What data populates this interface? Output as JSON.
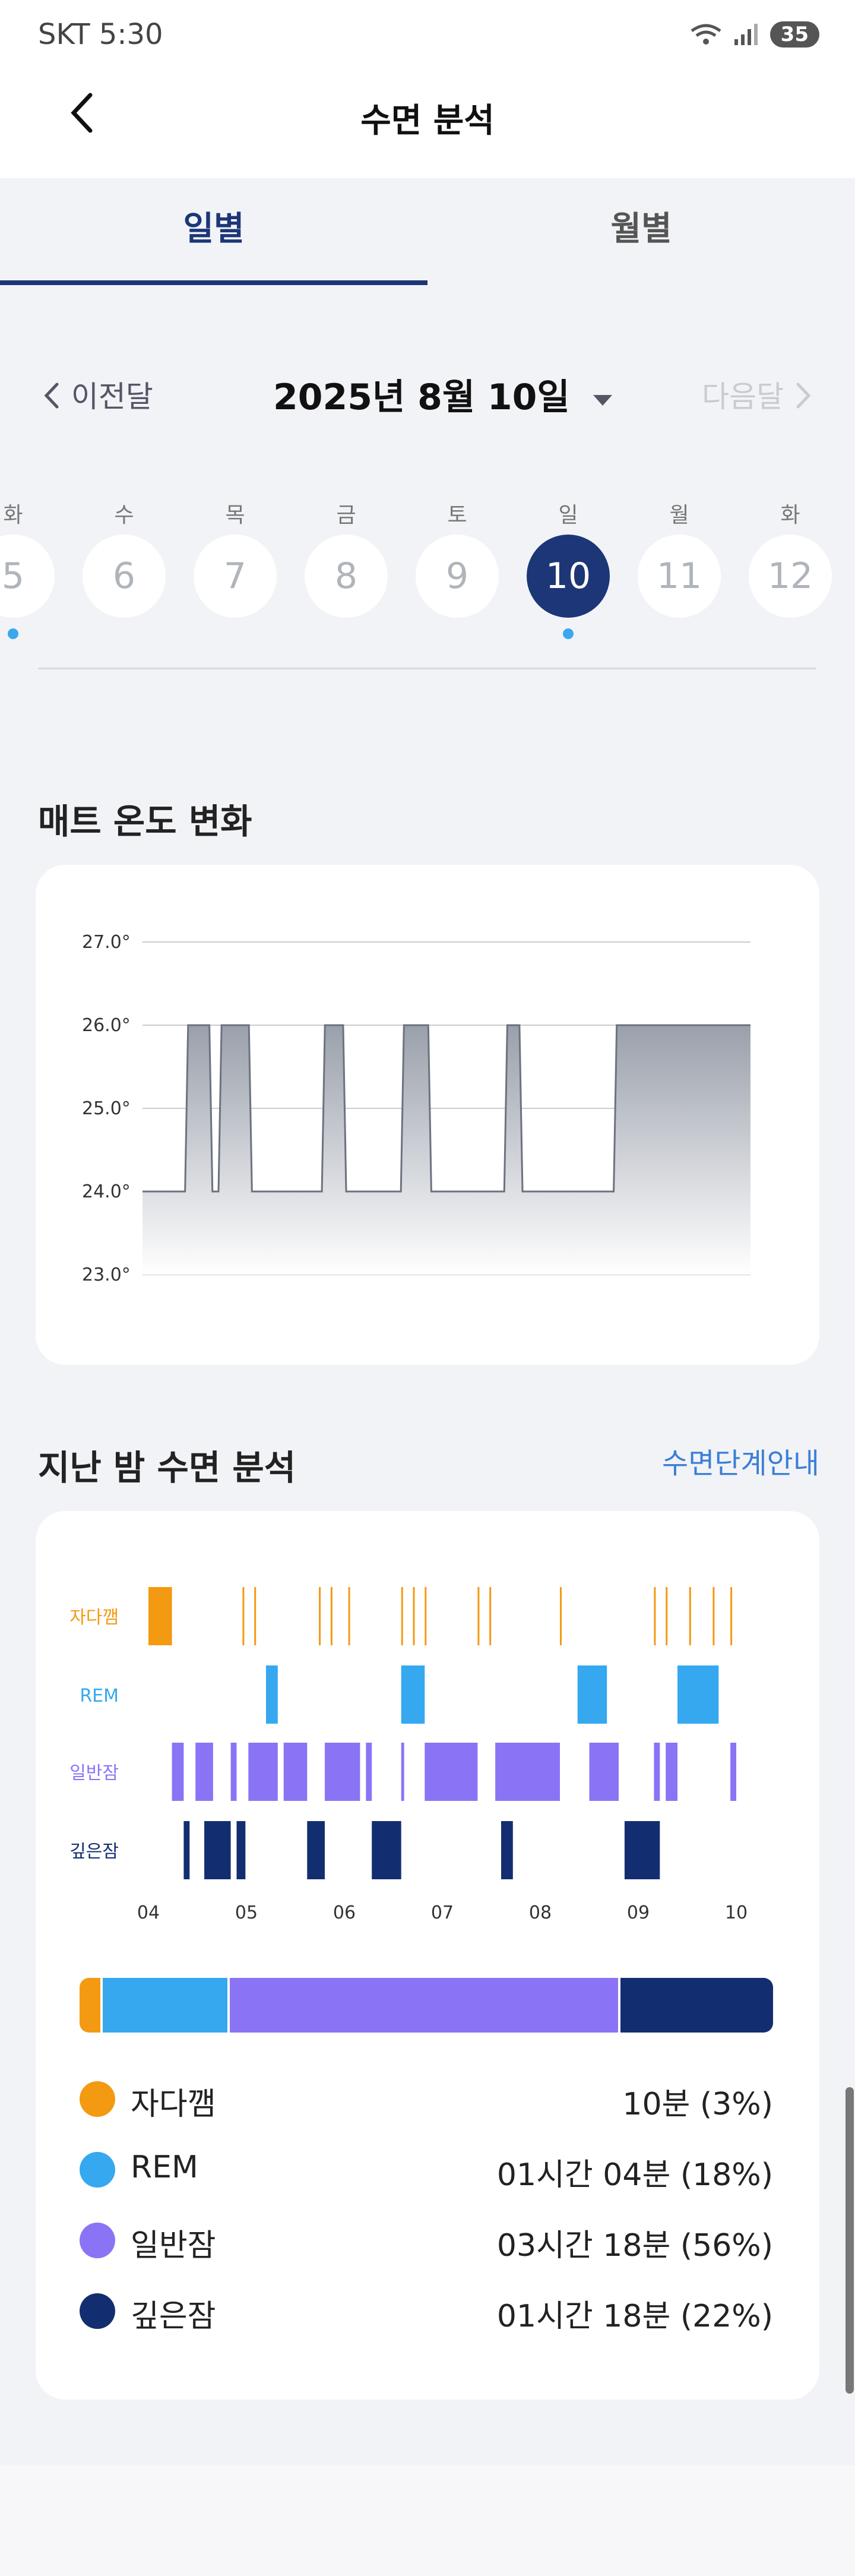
{
  "status_bar": {
    "time": "SKT 5:30",
    "battery": "35"
  },
  "header": {
    "title": "수면 분석"
  },
  "tabs": [
    {
      "label": "일별"
    },
    {
      "label": "월별"
    }
  ],
  "month_nav": {
    "prev": "이전달",
    "current": "2025년 8월 10일",
    "next": "다음달"
  },
  "day_strip": {
    "days": [
      {
        "dow": "화",
        "num": "5",
        "dot": true
      },
      {
        "dow": "수",
        "num": "6",
        "dot": false
      },
      {
        "dow": "목",
        "num": "7",
        "dot": false
      },
      {
        "dow": "금",
        "num": "8",
        "dot": false
      },
      {
        "dow": "토",
        "num": "9",
        "dot": false
      },
      {
        "dow": "일",
        "num": "10",
        "dot": true,
        "selected": true
      },
      {
        "dow": "월",
        "num": "11",
        "dot": false
      },
      {
        "dow": "화",
        "num": "12",
        "dot": false
      }
    ]
  },
  "temperature": {
    "title": "매트 온도 변화",
    "chart_data": {
      "type": "area",
      "y_ticks": [
        "27.0°",
        "26.0°",
        "25.0°",
        "24.0°",
        "23.0°"
      ],
      "ylim": [
        23,
        27
      ],
      "points": [
        {
          "x": 0,
          "y": 24
        },
        {
          "x": 0.07,
          "y": 24
        },
        {
          "x": 0.075,
          "y": 26
        },
        {
          "x": 0.11,
          "y": 26
        },
        {
          "x": 0.115,
          "y": 24
        },
        {
          "x": 0.125,
          "y": 24
        },
        {
          "x": 0.13,
          "y": 26
        },
        {
          "x": 0.175,
          "y": 26
        },
        {
          "x": 0.18,
          "y": 24
        },
        {
          "x": 0.295,
          "y": 24
        },
        {
          "x": 0.3,
          "y": 26
        },
        {
          "x": 0.33,
          "y": 26
        },
        {
          "x": 0.335,
          "y": 24
        },
        {
          "x": 0.425,
          "y": 24
        },
        {
          "x": 0.43,
          "y": 26
        },
        {
          "x": 0.47,
          "y": 26
        },
        {
          "x": 0.475,
          "y": 24
        },
        {
          "x": 0.595,
          "y": 24
        },
        {
          "x": 0.6,
          "y": 26
        },
        {
          "x": 0.62,
          "y": 26
        },
        {
          "x": 0.625,
          "y": 24
        },
        {
          "x": 0.775,
          "y": 24
        },
        {
          "x": 0.78,
          "y": 26
        },
        {
          "x": 1,
          "y": 26
        }
      ]
    }
  },
  "sleep_analysis": {
    "title": "지난 밤 수면 분석",
    "guide_link": "수면단계안내",
    "chart_data": {
      "type": "bar",
      "rows": [
        "자다깸",
        "REM",
        "일반잠",
        "깊은잠"
      ],
      "row_colors": [
        "#f39a12",
        "#35a8f0",
        "#8a74f5",
        "#132e70"
      ],
      "x_ticks": [
        "04",
        "05",
        "06",
        "07",
        "08",
        "09",
        "10"
      ],
      "segments": [
        [
          [
            0.0,
            0.04
          ],
          [
            0.16,
            0.162
          ],
          [
            0.18,
            0.182
          ],
          [
            0.29,
            0.292
          ],
          [
            0.31,
            0.312
          ],
          [
            0.34,
            0.342
          ],
          [
            0.43,
            0.432
          ],
          [
            0.45,
            0.453
          ],
          [
            0.47,
            0.472
          ],
          [
            0.56,
            0.562
          ],
          [
            0.58,
            0.582
          ],
          [
            0.7,
            0.702
          ],
          [
            0.86,
            0.862
          ],
          [
            0.88,
            0.882
          ],
          [
            0.92,
            0.922
          ],
          [
            0.96,
            0.962
          ],
          [
            0.99,
            0.992
          ]
        ],
        [
          [
            0.2,
            0.22
          ],
          [
            0.43,
            0.47
          ],
          [
            0.73,
            0.78
          ],
          [
            0.9,
            0.97
          ]
        ],
        [
          [
            0.04,
            0.06
          ],
          [
            0.08,
            0.11
          ],
          [
            0.14,
            0.15
          ],
          [
            0.17,
            0.22
          ],
          [
            0.23,
            0.27
          ],
          [
            0.3,
            0.36
          ],
          [
            0.37,
            0.38
          ],
          [
            0.43,
            0.435
          ],
          [
            0.47,
            0.56
          ],
          [
            0.59,
            0.7
          ],
          [
            0.75,
            0.8
          ],
          [
            0.86,
            0.87
          ],
          [
            0.88,
            0.9
          ],
          [
            0.99,
            1.0
          ]
        ],
        [
          [
            0.06,
            0.07
          ],
          [
            0.095,
            0.14
          ],
          [
            0.15,
            0.165
          ],
          [
            0.27,
            0.3
          ],
          [
            0.38,
            0.43
          ],
          [
            0.6,
            0.62
          ],
          [
            0.81,
            0.87
          ]
        ]
      ]
    },
    "proportion": [
      {
        "value": 3,
        "color": "#f39a12"
      },
      {
        "value": 18,
        "color": "#35a8f0"
      },
      {
        "value": 56,
        "color": "#8a74f5"
      },
      {
        "value": 22,
        "color": "#132e70"
      }
    ],
    "legend": [
      {
        "label": "자다깸",
        "value": "10분 (3%)",
        "color": "#f39a12"
      },
      {
        "label": "REM",
        "value": "01시간 04분 (18%)",
        "color": "#35a8f0"
      },
      {
        "label": "일반잠",
        "value": "03시간 18분 (56%)",
        "color": "#8a74f5"
      },
      {
        "label": "깊은잠",
        "value": "01시간 18분 (22%)",
        "color": "#132e70"
      }
    ]
  }
}
